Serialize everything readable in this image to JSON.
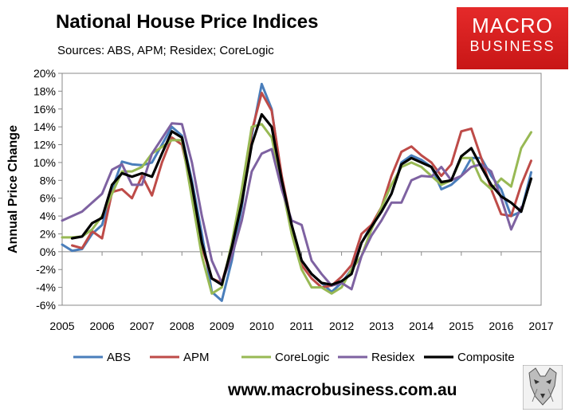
{
  "title": "National House Price Indices",
  "subtitle": "Sources: ABS, APM; Residex; CoreLogic",
  "logo": {
    "line1": "MACRO",
    "line2": "BUSINESS"
  },
  "footer": "www.macrobusiness.com.au",
  "chart_data": {
    "type": "line",
    "ylabel": "Annual Price Change",
    "xlabel": "",
    "xlim": [
      2005,
      2017
    ],
    "ylim": [
      -6,
      20
    ],
    "grid": false,
    "legend_position": "bottom",
    "x_ticks": [
      "2005",
      "2006",
      "2007",
      "2008",
      "2009",
      "2010",
      "2011",
      "2012",
      "2013",
      "2014",
      "2015",
      "2016",
      "2017"
    ],
    "y_ticks": [
      "-6%",
      "-4%",
      "-2%",
      "0%",
      "2%",
      "4%",
      "6%",
      "8%",
      "10%",
      "12%",
      "14%",
      "16%",
      "18%",
      "20%"
    ],
    "series": [
      {
        "name": "ABS",
        "color": "#4a7ebb",
        "points": [
          [
            2005.0,
            0.8
          ],
          [
            2005.25,
            0.1
          ],
          [
            2005.5,
            0.3
          ],
          [
            2005.75,
            2.0
          ],
          [
            2006.0,
            3.0
          ],
          [
            2006.25,
            7.0
          ],
          [
            2006.5,
            10.1
          ],
          [
            2006.75,
            9.8
          ],
          [
            2007.0,
            9.7
          ],
          [
            2007.25,
            10.0
          ],
          [
            2007.5,
            12.0
          ],
          [
            2007.75,
            14.0
          ],
          [
            2008.0,
            13.0
          ],
          [
            2008.25,
            8.0
          ],
          [
            2008.5,
            2.0
          ],
          [
            2008.75,
            -4.5
          ],
          [
            2009.0,
            -5.5
          ],
          [
            2009.25,
            -1.0
          ],
          [
            2009.5,
            5.0
          ],
          [
            2009.75,
            13.0
          ],
          [
            2010.0,
            18.8
          ],
          [
            2010.25,
            16.0
          ],
          [
            2010.5,
            8.0
          ],
          [
            2010.75,
            3.0
          ],
          [
            2011.0,
            -1.0
          ],
          [
            2011.25,
            -2.5
          ],
          [
            2011.5,
            -3.5
          ],
          [
            2011.75,
            -4.5
          ],
          [
            2012.0,
            -3.5
          ],
          [
            2012.25,
            -2.0
          ],
          [
            2012.5,
            1.0
          ],
          [
            2012.75,
            3.0
          ],
          [
            2013.0,
            4.5
          ],
          [
            2013.25,
            6.5
          ],
          [
            2013.5,
            10.0
          ],
          [
            2013.75,
            10.8
          ],
          [
            2014.0,
            10.3
          ],
          [
            2014.25,
            9.5
          ],
          [
            2014.5,
            7.0
          ],
          [
            2014.75,
            7.5
          ],
          [
            2015.0,
            8.5
          ],
          [
            2015.25,
            10.5
          ],
          [
            2015.5,
            10.5
          ],
          [
            2015.75,
            8.5
          ],
          [
            2016.0,
            7.0
          ],
          [
            2016.25,
            4.0
          ],
          [
            2016.5,
            4.5
          ],
          [
            2016.75,
            8.9
          ]
        ]
      },
      {
        "name": "APM",
        "color": "#be4b48",
        "points": [
          [
            2005.25,
            0.7
          ],
          [
            2005.5,
            0.4
          ],
          [
            2005.75,
            2.3
          ],
          [
            2006.0,
            1.5
          ],
          [
            2006.25,
            6.7
          ],
          [
            2006.5,
            7.0
          ],
          [
            2006.75,
            6.0
          ],
          [
            2007.0,
            8.5
          ],
          [
            2007.25,
            6.3
          ],
          [
            2007.5,
            10.0
          ],
          [
            2007.75,
            12.8
          ],
          [
            2008.0,
            12.0
          ],
          [
            2008.25,
            7.0
          ],
          [
            2008.5,
            0.5
          ],
          [
            2008.75,
            -3.0
          ],
          [
            2009.0,
            -3.5
          ],
          [
            2009.25,
            0.5
          ],
          [
            2009.5,
            6.0
          ],
          [
            2009.75,
            13.5
          ],
          [
            2010.0,
            17.8
          ],
          [
            2010.25,
            15.8
          ],
          [
            2010.5,
            8.5
          ],
          [
            2010.75,
            3.0
          ],
          [
            2011.0,
            -1.5
          ],
          [
            2011.25,
            -3.0
          ],
          [
            2011.5,
            -4.0
          ],
          [
            2011.75,
            -3.8
          ],
          [
            2012.0,
            -2.8
          ],
          [
            2012.25,
            -1.5
          ],
          [
            2012.5,
            2.0
          ],
          [
            2012.75,
            3.0
          ],
          [
            2013.0,
            5.0
          ],
          [
            2013.25,
            8.5
          ],
          [
            2013.5,
            11.2
          ],
          [
            2013.75,
            11.8
          ],
          [
            2014.0,
            10.8
          ],
          [
            2014.25,
            10.0
          ],
          [
            2014.5,
            8.5
          ],
          [
            2014.75,
            9.8
          ],
          [
            2015.0,
            13.5
          ],
          [
            2015.25,
            13.8
          ],
          [
            2015.5,
            10.5
          ],
          [
            2015.75,
            7.0
          ],
          [
            2016.0,
            4.2
          ],
          [
            2016.25,
            4.0
          ],
          [
            2016.5,
            7.5
          ],
          [
            2016.75,
            10.2
          ]
        ]
      },
      {
        "name": "CoreLogic",
        "color": "#98b954",
        "points": [
          [
            2005.0,
            1.6
          ],
          [
            2005.25,
            1.6
          ],
          [
            2005.5,
            1.7
          ],
          [
            2005.75,
            2.5
          ],
          [
            2006.0,
            4.0
          ],
          [
            2006.25,
            6.5
          ],
          [
            2006.5,
            9.0
          ],
          [
            2006.75,
            9.0
          ],
          [
            2007.0,
            9.5
          ],
          [
            2007.25,
            11.0
          ],
          [
            2007.75,
            12.5
          ],
          [
            2008.0,
            12.5
          ],
          [
            2008.25,
            6.0
          ],
          [
            2008.5,
            -0.5
          ],
          [
            2008.75,
            -4.7
          ],
          [
            2009.0,
            -4.0
          ],
          [
            2009.25,
            1.0
          ],
          [
            2009.5,
            7.0
          ],
          [
            2009.75,
            14.0
          ],
          [
            2010.0,
            14.3
          ],
          [
            2010.25,
            12.8
          ],
          [
            2010.5,
            7.5
          ],
          [
            2010.75,
            2.0
          ],
          [
            2011.0,
            -2.0
          ],
          [
            2011.25,
            -4.0
          ],
          [
            2011.5,
            -4.0
          ],
          [
            2011.75,
            -4.7
          ],
          [
            2012.0,
            -4.0
          ],
          [
            2012.25,
            -2.0
          ],
          [
            2012.5,
            -0.5
          ],
          [
            2012.75,
            2.5
          ],
          [
            2013.0,
            5.0
          ],
          [
            2013.25,
            7.5
          ],
          [
            2013.5,
            9.5
          ],
          [
            2013.75,
            10.0
          ],
          [
            2014.0,
            9.5
          ],
          [
            2014.25,
            8.5
          ],
          [
            2014.5,
            7.5
          ],
          [
            2014.75,
            8.0
          ],
          [
            2015.0,
            10.5
          ],
          [
            2015.25,
            10.5
          ],
          [
            2015.5,
            8.0
          ],
          [
            2015.75,
            7.0
          ],
          [
            2016.0,
            8.2
          ],
          [
            2016.25,
            7.3
          ],
          [
            2016.5,
            11.6
          ],
          [
            2016.75,
            13.4
          ]
        ]
      },
      {
        "name": "Residex",
        "color": "#7e62a1",
        "points": [
          [
            2005.0,
            3.5
          ],
          [
            2005.25,
            4.0
          ],
          [
            2005.5,
            4.5
          ],
          [
            2005.75,
            5.5
          ],
          [
            2006.0,
            6.5
          ],
          [
            2006.25,
            9.2
          ],
          [
            2006.5,
            9.8
          ],
          [
            2006.75,
            7.5
          ],
          [
            2007.0,
            7.5
          ],
          [
            2007.25,
            11.0
          ],
          [
            2007.75,
            14.4
          ],
          [
            2008.0,
            14.3
          ],
          [
            2008.25,
            10.0
          ],
          [
            2008.5,
            4.0
          ],
          [
            2008.75,
            -1.0
          ],
          [
            2009.0,
            -3.5
          ],
          [
            2009.25,
            -0.5
          ],
          [
            2009.5,
            3.5
          ],
          [
            2009.75,
            9.0
          ],
          [
            2010.0,
            11.0
          ],
          [
            2010.25,
            11.5
          ],
          [
            2010.5,
            7.0
          ],
          [
            2010.75,
            3.5
          ],
          [
            2011.0,
            3.0
          ],
          [
            2011.25,
            -1.0
          ],
          [
            2011.5,
            -2.5
          ],
          [
            2011.75,
            -3.8
          ],
          [
            2012.0,
            -3.5
          ],
          [
            2012.25,
            -4.2
          ],
          [
            2012.5,
            -0.5
          ],
          [
            2012.75,
            1.8
          ],
          [
            2013.0,
            3.5
          ],
          [
            2013.25,
            5.5
          ],
          [
            2013.5,
            5.5
          ],
          [
            2013.75,
            8.0
          ],
          [
            2014.0,
            8.5
          ],
          [
            2014.25,
            8.4
          ],
          [
            2014.5,
            9.5
          ],
          [
            2014.75,
            8.0
          ],
          [
            2015.0,
            8.5
          ],
          [
            2015.25,
            9.5
          ],
          [
            2015.5,
            9.8
          ],
          [
            2015.75,
            9.0
          ],
          [
            2016.0,
            6.0
          ],
          [
            2016.25,
            2.5
          ],
          [
            2016.5,
            5.0
          ]
        ]
      },
      {
        "name": "Composite",
        "color": "#000000",
        "points": [
          [
            2005.25,
            1.5
          ],
          [
            2005.5,
            1.7
          ],
          [
            2005.75,
            3.2
          ],
          [
            2006.0,
            3.8
          ],
          [
            2006.25,
            7.5
          ],
          [
            2006.5,
            8.8
          ],
          [
            2006.75,
            8.4
          ],
          [
            2007.0,
            8.8
          ],
          [
            2007.25,
            8.4
          ],
          [
            2007.5,
            11.0
          ],
          [
            2007.75,
            13.5
          ],
          [
            2008.0,
            12.8
          ],
          [
            2008.25,
            7.5
          ],
          [
            2008.5,
            1.0
          ],
          [
            2008.75,
            -3.0
          ],
          [
            2009.0,
            -3.7
          ],
          [
            2009.25,
            0.5
          ],
          [
            2009.5,
            5.5
          ],
          [
            2009.75,
            12.0
          ],
          [
            2010.0,
            15.4
          ],
          [
            2010.25,
            14.0
          ],
          [
            2010.5,
            8.0
          ],
          [
            2010.75,
            3.0
          ],
          [
            2011.0,
            -1.0
          ],
          [
            2011.25,
            -2.5
          ],
          [
            2011.5,
            -3.5
          ],
          [
            2011.75,
            -3.7
          ],
          [
            2012.0,
            -3.3
          ],
          [
            2012.25,
            -2.5
          ],
          [
            2012.5,
            1.0
          ],
          [
            2012.75,
            2.8
          ],
          [
            2013.0,
            4.5
          ],
          [
            2013.25,
            6.5
          ],
          [
            2013.5,
            9.8
          ],
          [
            2013.75,
            10.5
          ],
          [
            2014.0,
            10.0
          ],
          [
            2014.25,
            9.5
          ],
          [
            2014.5,
            7.8
          ],
          [
            2014.75,
            8.0
          ],
          [
            2015.0,
            10.7
          ],
          [
            2015.25,
            11.6
          ],
          [
            2015.5,
            9.5
          ],
          [
            2015.75,
            7.5
          ],
          [
            2016.0,
            6.2
          ],
          [
            2016.25,
            5.5
          ],
          [
            2016.5,
            4.5
          ],
          [
            2016.75,
            8.2
          ]
        ]
      }
    ]
  }
}
